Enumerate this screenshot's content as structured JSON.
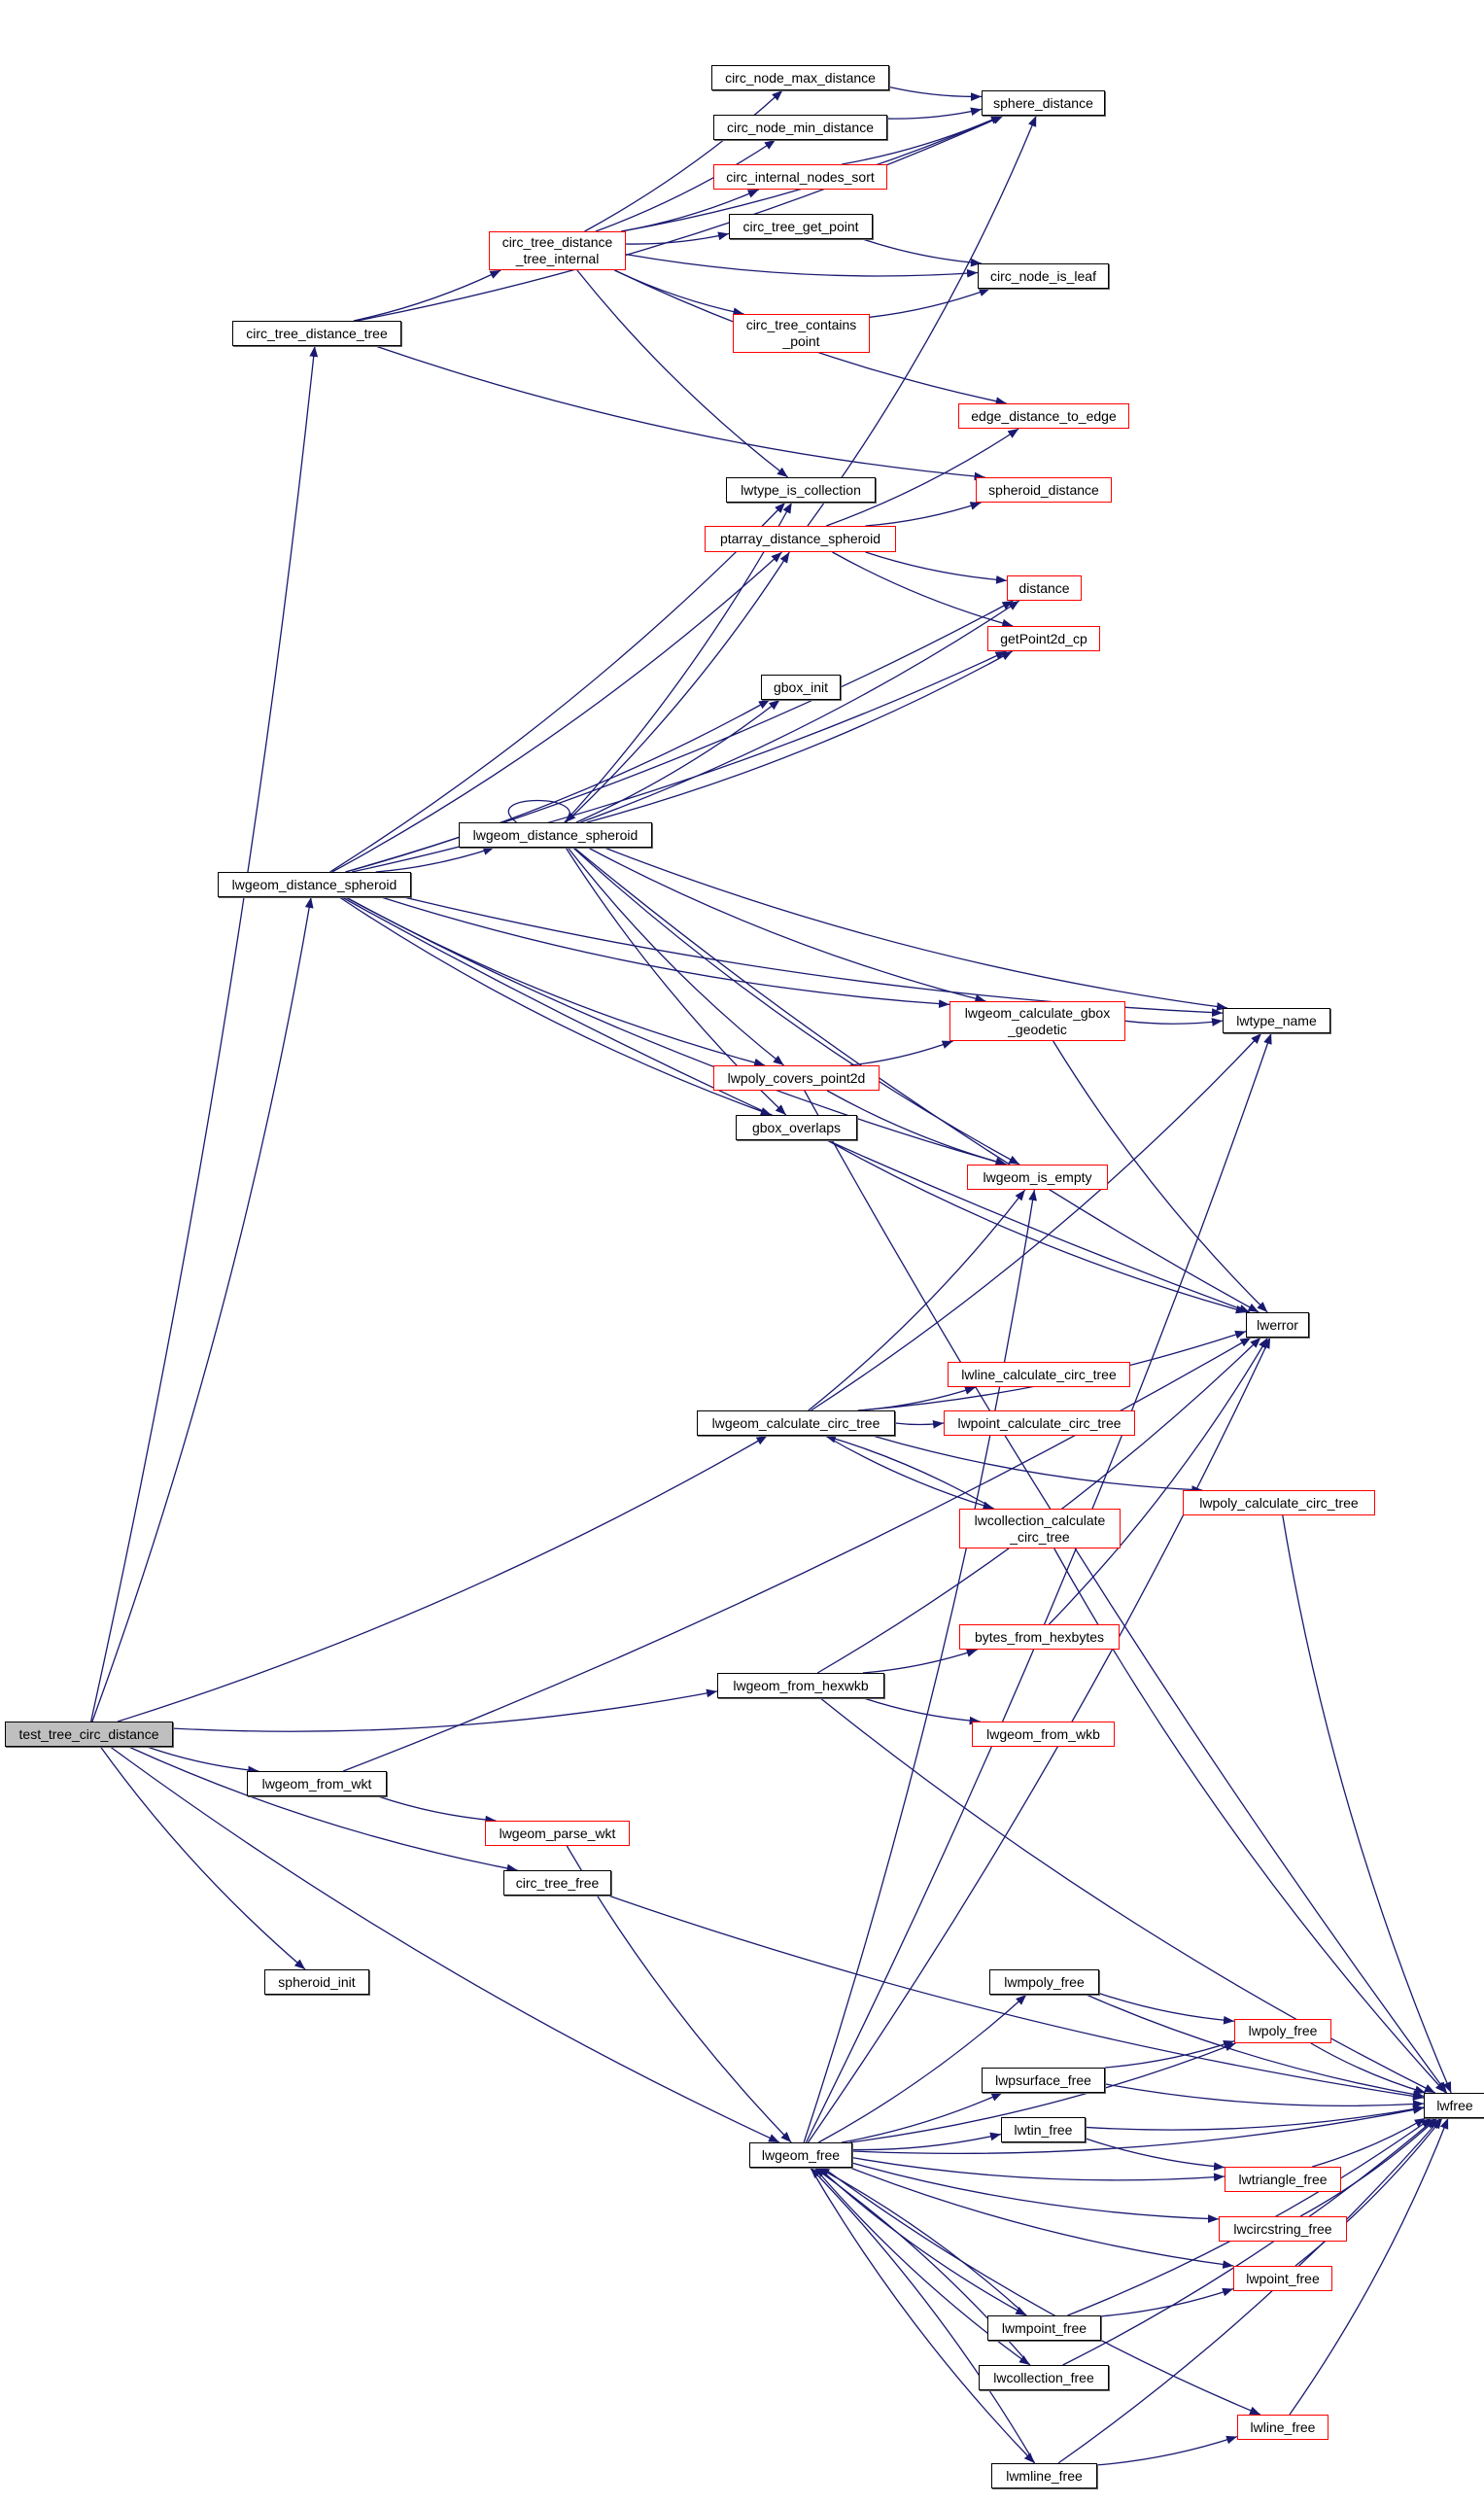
{
  "colors": {
    "edge": "#191970",
    "linked_border": "#000000",
    "undocumented_border": "#ff0000",
    "root_fill": "#bfbfbf"
  },
  "nodes": [
    {
      "id": "test_tree_circ_distance",
      "label": "test_tree_circ_distance",
      "style": "root"
    },
    {
      "id": "circ_tree_distance_tree",
      "label": "circ_tree_distance_tree",
      "style": "black"
    },
    {
      "id": "circ_tree_distance_tree_internal",
      "label": "circ_tree_distance\n_tree_internal",
      "style": "red"
    },
    {
      "id": "circ_node_max_distance",
      "label": "circ_node_max_distance",
      "style": "black"
    },
    {
      "id": "circ_node_min_distance",
      "label": "circ_node_min_distance",
      "style": "black"
    },
    {
      "id": "circ_internal_nodes_sort",
      "label": "circ_internal_nodes_sort",
      "style": "red"
    },
    {
      "id": "sphere_distance",
      "label": "sphere_distance",
      "style": "black"
    },
    {
      "id": "circ_tree_get_point",
      "label": "circ_tree_get_point",
      "style": "black"
    },
    {
      "id": "circ_node_is_leaf",
      "label": "circ_node_is_leaf",
      "style": "black"
    },
    {
      "id": "circ_tree_contains_point",
      "label": "circ_tree_contains\n_point",
      "style": "red"
    },
    {
      "id": "edge_distance_to_edge",
      "label": "edge_distance_to_edge",
      "style": "red"
    },
    {
      "id": "lwtype_is_collection",
      "label": "lwtype_is_collection",
      "style": "black"
    },
    {
      "id": "spheroid_distance",
      "label": "spheroid_distance",
      "style": "red"
    },
    {
      "id": "ptarray_distance_spheroid",
      "label": "ptarray_distance_spheroid",
      "style": "red"
    },
    {
      "id": "distance",
      "label": "distance",
      "style": "red"
    },
    {
      "id": "getPoint2d_cp",
      "label": "getPoint2d_cp",
      "style": "red"
    },
    {
      "id": "gbox_init",
      "label": "gbox_init",
      "style": "black"
    },
    {
      "id": "lwgeom_distance_spheroid_a",
      "label": "lwgeom_distance_spheroid",
      "style": "black"
    },
    {
      "id": "lwgeom_distance_spheroid_b",
      "label": "lwgeom_distance_spheroid",
      "style": "black"
    },
    {
      "id": "lwgeom_calculate_gbox_geodetic",
      "label": "lwgeom_calculate_gbox\n_geodetic",
      "style": "red"
    },
    {
      "id": "lwtype_name",
      "label": "lwtype_name",
      "style": "black"
    },
    {
      "id": "lwpoly_covers_point2d",
      "label": "lwpoly_covers_point2d",
      "style": "red"
    },
    {
      "id": "gbox_overlaps",
      "label": "gbox_overlaps",
      "style": "black"
    },
    {
      "id": "lwgeom_is_empty",
      "label": "lwgeom_is_empty",
      "style": "red"
    },
    {
      "id": "lwerror",
      "label": "lwerror",
      "style": "black"
    },
    {
      "id": "lwline_calculate_circ_tree",
      "label": "lwline_calculate_circ_tree",
      "style": "red"
    },
    {
      "id": "lwgeom_calculate_circ_tree",
      "label": "lwgeom_calculate_circ_tree",
      "style": "black"
    },
    {
      "id": "lwpoint_calculate_circ_tree",
      "label": "lwpoint_calculate_circ_tree",
      "style": "red"
    },
    {
      "id": "lwpoly_calculate_circ_tree",
      "label": "lwpoly_calculate_circ_tree",
      "style": "red"
    },
    {
      "id": "lwcollection_calculate_circ_tree",
      "label": "lwcollection_calculate\n_circ_tree",
      "style": "red"
    },
    {
      "id": "bytes_from_hexbytes",
      "label": "bytes_from_hexbytes",
      "style": "red"
    },
    {
      "id": "lwgeom_from_hexwkb",
      "label": "lwgeom_from_hexwkb",
      "style": "black"
    },
    {
      "id": "lwgeom_from_wkb",
      "label": "lwgeom_from_wkb",
      "style": "red"
    },
    {
      "id": "lwgeom_from_wkt",
      "label": "lwgeom_from_wkt",
      "style": "black"
    },
    {
      "id": "lwgeom_parse_wkt",
      "label": "lwgeom_parse_wkt",
      "style": "red"
    },
    {
      "id": "circ_tree_free",
      "label": "circ_tree_free",
      "style": "black"
    },
    {
      "id": "spheroid_init",
      "label": "spheroid_init",
      "style": "black"
    },
    {
      "id": "lwmpoly_free",
      "label": "lwmpoly_free",
      "style": "black"
    },
    {
      "id": "lwpoly_free",
      "label": "lwpoly_free",
      "style": "red"
    },
    {
      "id": "lwpsurface_free",
      "label": "lwpsurface_free",
      "style": "black"
    },
    {
      "id": "lwfree",
      "label": "lwfree",
      "style": "black"
    },
    {
      "id": "lwtin_free",
      "label": "lwtin_free",
      "style": "black"
    },
    {
      "id": "lwgeom_free",
      "label": "lwgeom_free",
      "style": "black"
    },
    {
      "id": "lwtriangle_free",
      "label": "lwtriangle_free",
      "style": "red"
    },
    {
      "id": "lwcircstring_free",
      "label": "lwcircstring_free",
      "style": "red"
    },
    {
      "id": "lwpoint_free",
      "label": "lwpoint_free",
      "style": "red"
    },
    {
      "id": "lwmpoint_free",
      "label": "lwmpoint_free",
      "style": "black"
    },
    {
      "id": "lwcollection_free",
      "label": "lwcollection_free",
      "style": "black"
    },
    {
      "id": "lwline_free",
      "label": "lwline_free",
      "style": "red"
    },
    {
      "id": "lwmline_free",
      "label": "lwmline_free",
      "style": "black"
    }
  ],
  "edges": [
    [
      "test_tree_circ_distance",
      "circ_tree_distance_tree"
    ],
    [
      "test_tree_circ_distance",
      "lwgeom_distance_spheroid_b"
    ],
    [
      "test_tree_circ_distance",
      "lwgeom_calculate_circ_tree"
    ],
    [
      "test_tree_circ_distance",
      "lwgeom_from_hexwkb"
    ],
    [
      "test_tree_circ_distance",
      "lwgeom_from_wkt"
    ],
    [
      "test_tree_circ_distance",
      "circ_tree_free"
    ],
    [
      "test_tree_circ_distance",
      "spheroid_init"
    ],
    [
      "test_tree_circ_distance",
      "lwgeom_free"
    ],
    [
      "circ_tree_distance_tree",
      "circ_tree_distance_tree_internal"
    ],
    [
      "circ_tree_distance_tree",
      "sphere_distance"
    ],
    [
      "circ_tree_distance_tree",
      "spheroid_distance"
    ],
    [
      "circ_tree_distance_tree_internal",
      "circ_node_max_distance"
    ],
    [
      "circ_tree_distance_tree_internal",
      "circ_node_min_distance"
    ],
    [
      "circ_tree_distance_tree_internal",
      "circ_internal_nodes_sort"
    ],
    [
      "circ_tree_distance_tree_internal",
      "sphere_distance"
    ],
    [
      "circ_tree_distance_tree_internal",
      "circ_tree_get_point"
    ],
    [
      "circ_tree_distance_tree_internal",
      "circ_node_is_leaf"
    ],
    [
      "circ_tree_distance_tree_internal",
      "circ_tree_contains_point"
    ],
    [
      "circ_tree_distance_tree_internal",
      "edge_distance_to_edge"
    ],
    [
      "circ_tree_distance_tree_internal",
      "lwtype_is_collection"
    ],
    [
      "circ_node_max_distance",
      "sphere_distance"
    ],
    [
      "circ_node_min_distance",
      "sphere_distance"
    ],
    [
      "circ_internal_nodes_sort",
      "sphere_distance"
    ],
    [
      "circ_tree_get_point",
      "circ_node_is_leaf"
    ],
    [
      "circ_tree_contains_point",
      "circ_node_is_leaf"
    ],
    [
      "ptarray_distance_spheroid",
      "sphere_distance"
    ],
    [
      "ptarray_distance_spheroid",
      "edge_distance_to_edge"
    ],
    [
      "ptarray_distance_spheroid",
      "spheroid_distance"
    ],
    [
      "ptarray_distance_spheroid",
      "distance"
    ],
    [
      "ptarray_distance_spheroid",
      "getPoint2d_cp"
    ],
    [
      "lwgeom_distance_spheroid_b",
      "lwtype_is_collection"
    ],
    [
      "lwgeom_distance_spheroid_b",
      "ptarray_distance_spheroid"
    ],
    [
      "lwgeom_distance_spheroid_b",
      "distance"
    ],
    [
      "lwgeom_distance_spheroid_b",
      "getPoint2d_cp"
    ],
    [
      "lwgeom_distance_spheroid_b",
      "gbox_init"
    ],
    [
      "lwgeom_distance_spheroid_b",
      "lwgeom_distance_spheroid_a"
    ],
    [
      "lwgeom_distance_spheroid_b",
      "lwtype_name"
    ],
    [
      "lwgeom_distance_spheroid_b",
      "lwgeom_calculate_gbox_geodetic"
    ],
    [
      "lwgeom_distance_spheroid_b",
      "lwpoly_covers_point2d"
    ],
    [
      "lwgeom_distance_spheroid_b",
      "gbox_overlaps"
    ],
    [
      "lwgeom_distance_spheroid_b",
      "lwgeom_is_empty"
    ],
    [
      "lwgeom_distance_spheroid_b",
      "lwerror"
    ],
    [
      "lwgeom_distance_spheroid_a",
      "lwgeom_distance_spheroid_a"
    ],
    [
      "lwgeom_distance_spheroid_a",
      "lwtype_is_collection"
    ],
    [
      "lwgeom_distance_spheroid_a",
      "ptarray_distance_spheroid"
    ],
    [
      "lwgeom_distance_spheroid_a",
      "distance"
    ],
    [
      "lwgeom_distance_spheroid_a",
      "getPoint2d_cp"
    ],
    [
      "lwgeom_distance_spheroid_a",
      "gbox_init"
    ],
    [
      "lwgeom_distance_spheroid_a",
      "lwtype_name"
    ],
    [
      "lwgeom_distance_spheroid_a",
      "lwgeom_calculate_gbox_geodetic"
    ],
    [
      "lwgeom_distance_spheroid_a",
      "lwpoly_covers_point2d"
    ],
    [
      "lwgeom_distance_spheroid_a",
      "gbox_overlaps"
    ],
    [
      "lwgeom_distance_spheroid_a",
      "lwgeom_is_empty"
    ],
    [
      "lwgeom_distance_spheroid_a",
      "lwerror"
    ],
    [
      "lwgeom_calculate_gbox_geodetic",
      "lwtype_name"
    ],
    [
      "lwgeom_calculate_gbox_geodetic",
      "lwerror"
    ],
    [
      "lwpoly_covers_point2d",
      "lwgeom_calculate_gbox_geodetic"
    ],
    [
      "lwpoly_covers_point2d",
      "lwgeom_is_empty"
    ],
    [
      "lwpoly_covers_point2d",
      "lwfree"
    ],
    [
      "gbox_overlaps",
      "lwerror"
    ],
    [
      "lwgeom_calculate_circ_tree",
      "lwgeom_is_empty"
    ],
    [
      "lwgeom_calculate_circ_tree",
      "lwtype_name"
    ],
    [
      "lwgeom_calculate_circ_tree",
      "lwerror"
    ],
    [
      "lwgeom_calculate_circ_tree",
      "lwline_calculate_circ_tree"
    ],
    [
      "lwgeom_calculate_circ_tree",
      "lwpoint_calculate_circ_tree"
    ],
    [
      "lwgeom_calculate_circ_tree",
      "lwpoly_calculate_circ_tree"
    ],
    [
      "lwgeom_calculate_circ_tree",
      "lwcollection_calculate_circ_tree"
    ],
    [
      "lwcollection_calculate_circ_tree",
      "lwgeom_calculate_circ_tree"
    ],
    [
      "lwcollection_calculate_circ_tree",
      "lwfree"
    ],
    [
      "lwpoly_calculate_circ_tree",
      "lwfree"
    ],
    [
      "lwgeom_from_hexwkb",
      "bytes_from_hexbytes"
    ],
    [
      "lwgeom_from_hexwkb",
      "lwerror"
    ],
    [
      "lwgeom_from_hexwkb",
      "lwgeom_from_wkb"
    ],
    [
      "lwgeom_from_hexwkb",
      "lwfree"
    ],
    [
      "bytes_from_hexbytes",
      "lwerror"
    ],
    [
      "lwgeom_from_wkt",
      "lwerror"
    ],
    [
      "lwgeom_from_wkt",
      "lwgeom_parse_wkt"
    ],
    [
      "lwgeom_parse_wkt",
      "lwgeom_free"
    ],
    [
      "circ_tree_free",
      "lwfree"
    ],
    [
      "lwgeom_free",
      "lwgeom_is_empty"
    ],
    [
      "lwgeom_free",
      "lwtype_name"
    ],
    [
      "lwgeom_free",
      "lwerror"
    ],
    [
      "lwgeom_free",
      "lwmpoly_free"
    ],
    [
      "lwgeom_free",
      "lwpoly_free"
    ],
    [
      "lwgeom_free",
      "lwpsurface_free"
    ],
    [
      "lwgeom_free",
      "lwtin_free"
    ],
    [
      "lwgeom_free",
      "lwtriangle_free"
    ],
    [
      "lwgeom_free",
      "lwcircstring_free"
    ],
    [
      "lwgeom_free",
      "lwpoint_free"
    ],
    [
      "lwgeom_free",
      "lwmpoint_free"
    ],
    [
      "lwgeom_free",
      "lwcollection_free"
    ],
    [
      "lwgeom_free",
      "lwline_free"
    ],
    [
      "lwgeom_free",
      "lwmline_free"
    ],
    [
      "lwgeom_free",
      "lwfree"
    ],
    [
      "lwmpoint_free",
      "lwgeom_free"
    ],
    [
      "lwcollection_free",
      "lwgeom_free"
    ],
    [
      "lwmline_free",
      "lwgeom_free"
    ],
    [
      "lwmpoly_free",
      "lwpoly_free"
    ],
    [
      "lwmpoly_free",
      "lwfree"
    ],
    [
      "lwpsurface_free",
      "lwpoly_free"
    ],
    [
      "lwpsurface_free",
      "lwfree"
    ],
    [
      "lwtin_free",
      "lwtriangle_free"
    ],
    [
      "lwtin_free",
      "lwfree"
    ],
    [
      "lwpoly_free",
      "lwfree"
    ],
    [
      "lwtriangle_free",
      "lwfree"
    ],
    [
      "lwcircstring_free",
      "lwfree"
    ],
    [
      "lwpoint_free",
      "lwfree"
    ],
    [
      "lwmpoint_free",
      "lwpoint_free"
    ],
    [
      "lwmpoint_free",
      "lwfree"
    ],
    [
      "lwcollection_free",
      "lwfree"
    ],
    [
      "lwline_free",
      "lwfree"
    ],
    [
      "lwmline_free",
      "lwline_free"
    ],
    [
      "lwmline_free",
      "lwfree"
    ]
  ]
}
